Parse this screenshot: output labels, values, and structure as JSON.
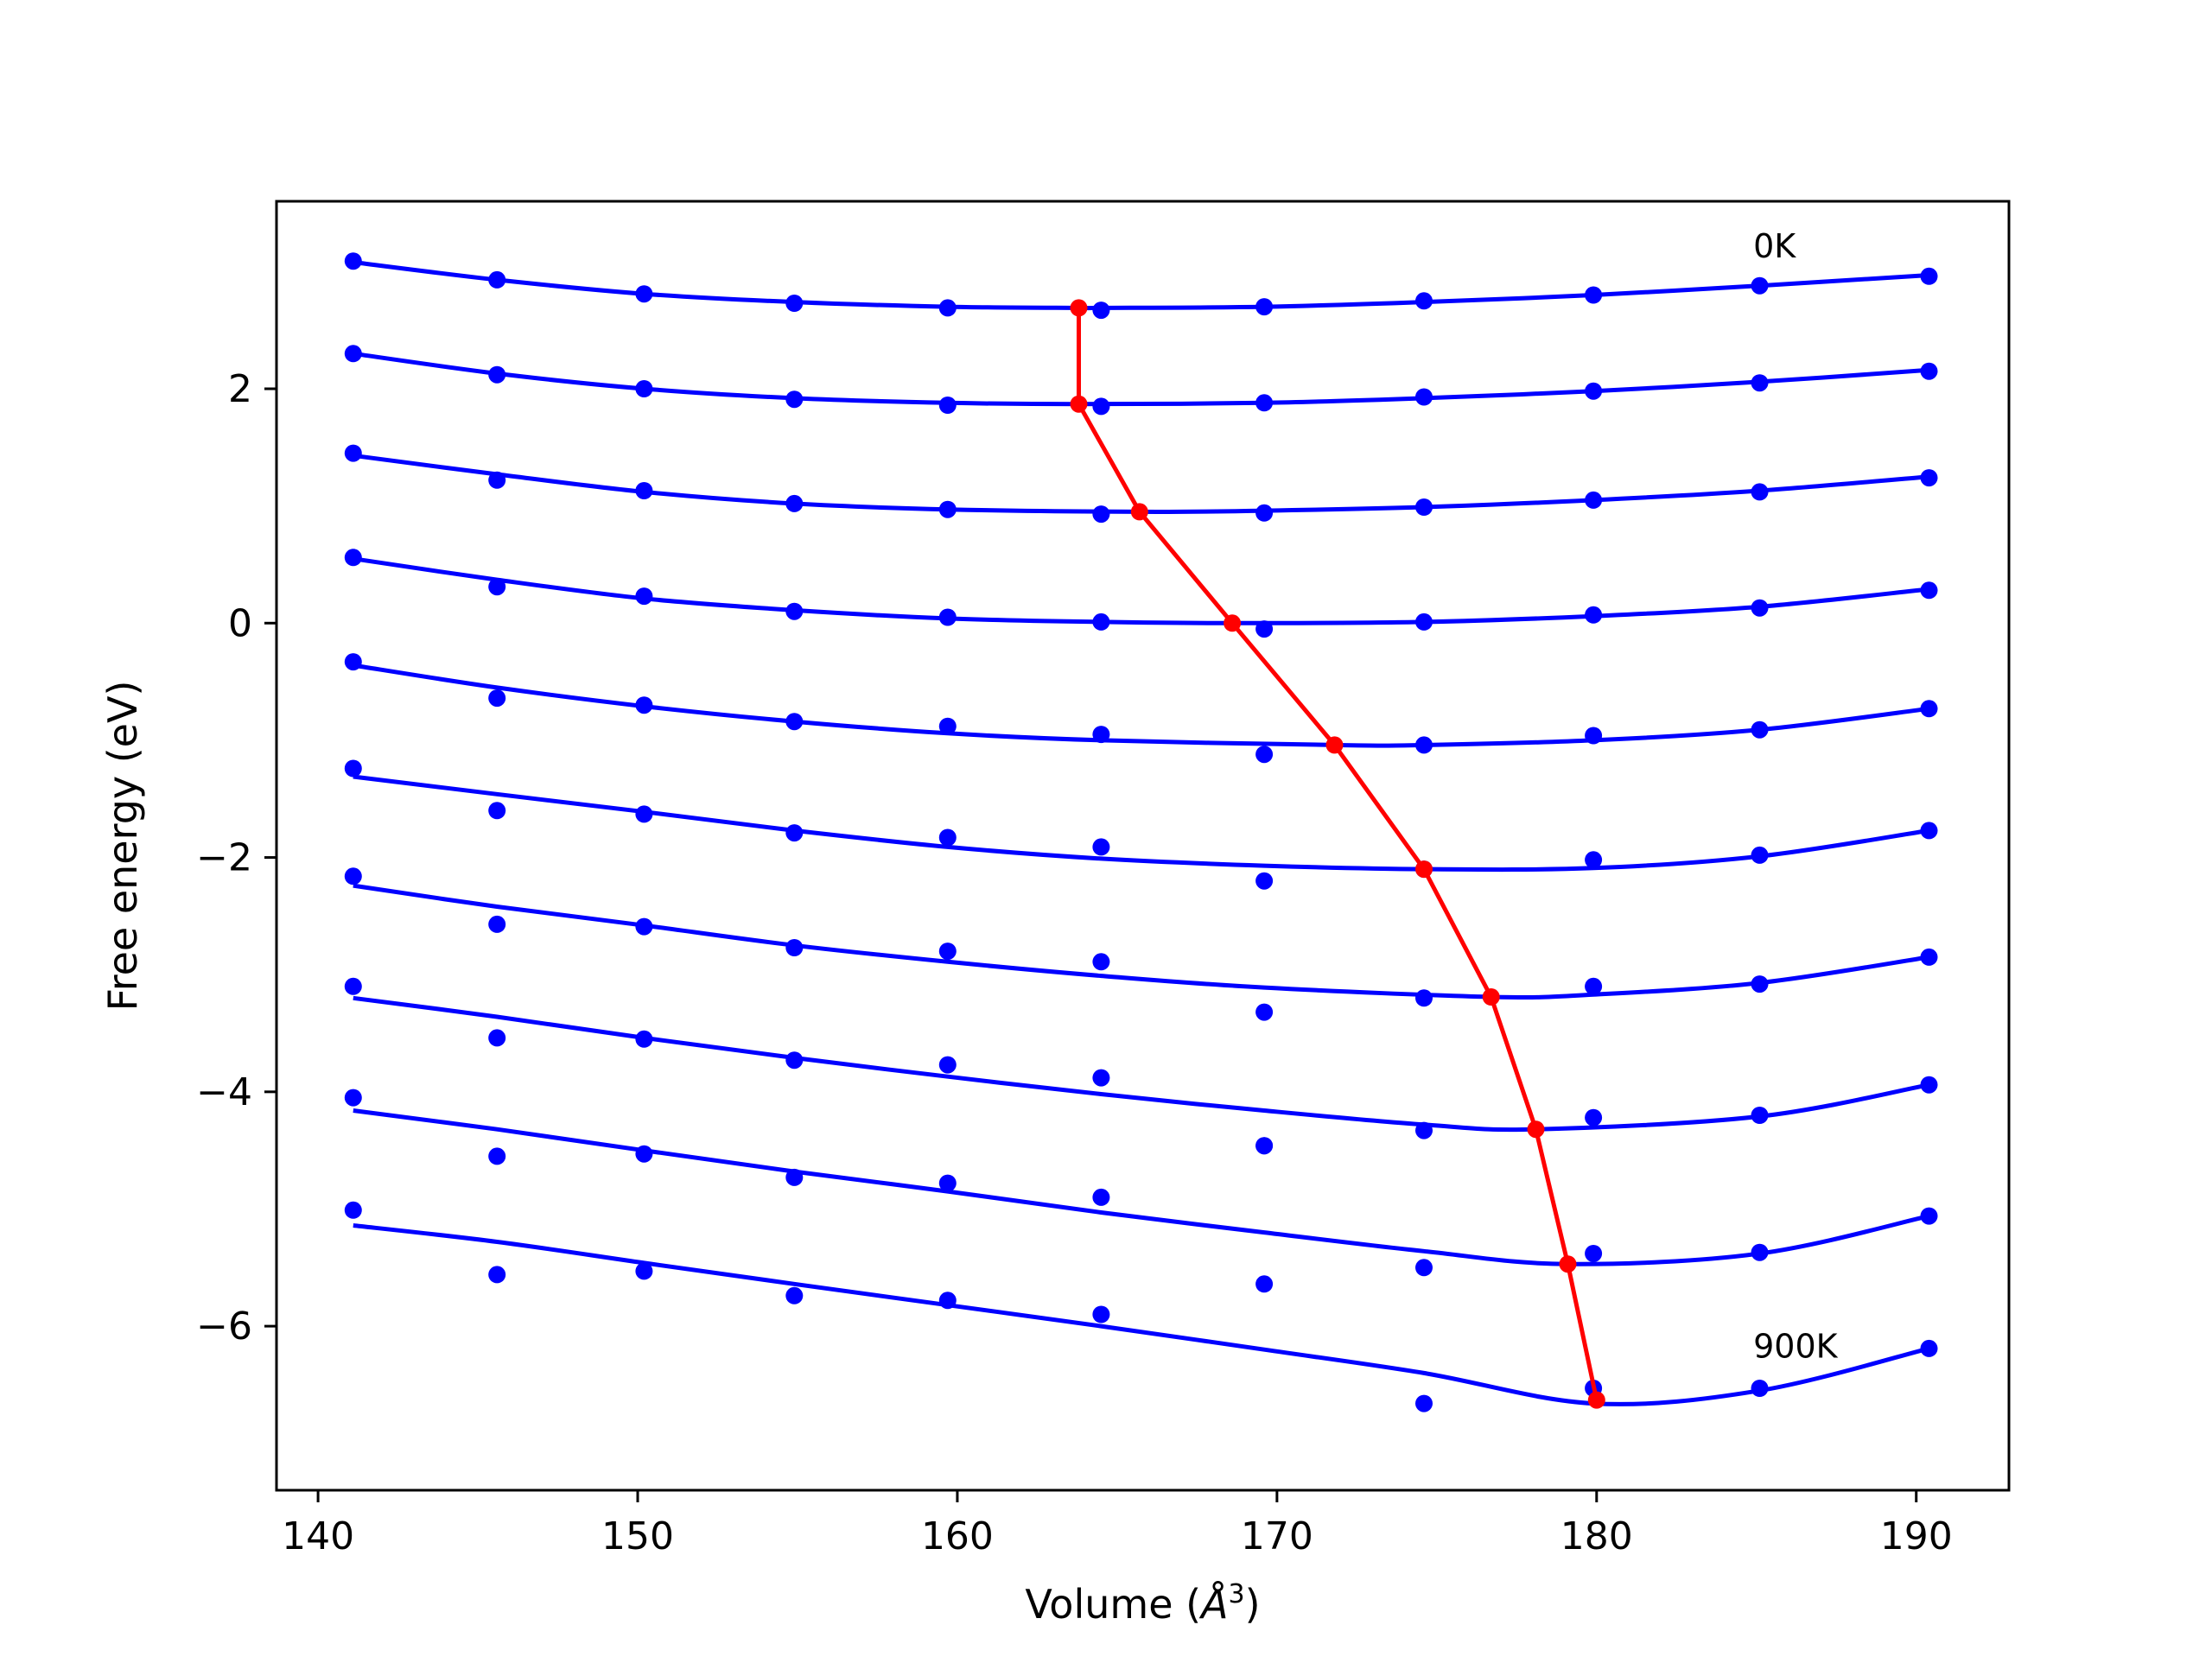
{
  "chart_data": {
    "type": "line",
    "title": "",
    "xlabel_text": "Volume (",
    "xlabel_unit": "Å",
    "xlabel_sup": "3",
    "xlabel_close": ")",
    "ylabel": "Free energy (eV)",
    "xlim": [
      138.7,
      192.9
    ],
    "ylim": [
      -7.4,
      3.6
    ],
    "xticks": [
      140,
      150,
      160,
      170,
      180,
      190
    ],
    "xtick_labels": [
      "140",
      "150",
      "160",
      "170",
      "180",
      "190"
    ],
    "yticks": [
      2,
      0,
      -2,
      -4,
      -6
    ],
    "ytick_labels": [
      "2",
      "0",
      "−2",
      "−4",
      "−6"
    ],
    "grid": false,
    "volumes": [
      141.1,
      145.6,
      150.2,
      154.9,
      159.7,
      164.5,
      169.6,
      174.6,
      179.9,
      185.1,
      190.4
    ],
    "colors": {
      "curves": "#0000ff",
      "minimum_line": "#ff0000",
      "frame": "#000000"
    },
    "annotations": [
      {
        "text": "0K",
        "x": 184.9,
        "y": 3.12
      },
      {
        "text": "900K",
        "x": 184.9,
        "y": -6.27
      }
    ],
    "series": [
      {
        "points": [
          3.09,
          2.93,
          2.81,
          2.73,
          2.69,
          2.67,
          2.7,
          2.75,
          2.8,
          2.88,
          2.96
        ],
        "curve": [
          [
            141.1,
            3.08
          ],
          [
            145.6,
            2.93
          ],
          [
            150.2,
            2.81
          ],
          [
            154.9,
            2.74
          ],
          [
            159.7,
            2.7
          ],
          [
            163.8,
            2.69
          ],
          [
            164.5,
            2.69
          ],
          [
            169.6,
            2.7
          ],
          [
            174.6,
            2.74
          ],
          [
            179.9,
            2.8
          ],
          [
            185.1,
            2.88
          ],
          [
            190.4,
            2.97
          ]
        ]
      },
      {
        "points": [
          2.3,
          2.12,
          2.0,
          1.91,
          1.86,
          1.85,
          1.88,
          1.93,
          1.98,
          2.05,
          2.15
        ],
        "curve": [
          [
            141.1,
            2.3
          ],
          [
            145.6,
            2.13
          ],
          [
            150.2,
            2.0
          ],
          [
            154.9,
            1.92
          ],
          [
            159.7,
            1.88
          ],
          [
            163.8,
            1.87
          ],
          [
            169.6,
            1.88
          ],
          [
            174.6,
            1.92
          ],
          [
            179.9,
            1.98
          ],
          [
            185.1,
            2.06
          ],
          [
            190.4,
            2.16
          ]
        ]
      },
      {
        "points": [
          1.45,
          1.22,
          1.13,
          1.02,
          0.97,
          0.93,
          0.94,
          0.99,
          1.05,
          1.12,
          1.24
        ],
        "curve": [
          [
            141.1,
            1.43
          ],
          [
            145.6,
            1.27
          ],
          [
            150.2,
            1.12
          ],
          [
            154.9,
            1.02
          ],
          [
            159.7,
            0.97
          ],
          [
            165.7,
            0.95
          ],
          [
            169.6,
            0.96
          ],
          [
            174.6,
            0.99
          ],
          [
            179.9,
            1.05
          ],
          [
            185.1,
            1.13
          ],
          [
            190.4,
            1.25
          ]
        ]
      },
      {
        "points": [
          0.56,
          0.31,
          0.23,
          0.1,
          0.05,
          0.01,
          -0.05,
          0.01,
          0.07,
          0.13,
          0.28
        ],
        "curve": [
          [
            141.1,
            0.55
          ],
          [
            145.6,
            0.37
          ],
          [
            150.2,
            0.21
          ],
          [
            154.9,
            0.11
          ],
          [
            159.7,
            0.04
          ],
          [
            164.5,
            0.01
          ],
          [
            168.6,
            0.0
          ],
          [
            174.6,
            0.01
          ],
          [
            179.9,
            0.06
          ],
          [
            185.1,
            0.14
          ],
          [
            190.4,
            0.29
          ]
        ]
      },
      {
        "points": [
          -0.33,
          -0.64,
          -0.7,
          -0.84,
          -0.88,
          -0.95,
          -1.12,
          -1.04,
          -0.96,
          -0.91,
          -0.73
        ],
        "curve": [
          [
            141.1,
            -0.36
          ],
          [
            145.6,
            -0.55
          ],
          [
            150.2,
            -0.71
          ],
          [
            154.9,
            -0.84
          ],
          [
            159.7,
            -0.94
          ],
          [
            164.5,
            -1.0
          ],
          [
            171.8,
            -1.04
          ],
          [
            174.6,
            -1.04
          ],
          [
            179.9,
            -1.0
          ],
          [
            185.1,
            -0.91
          ],
          [
            190.4,
            -0.73
          ]
        ]
      },
      {
        "points": [
          -1.24,
          -1.6,
          -1.63,
          -1.79,
          -1.83,
          -1.91,
          -2.2,
          -2.1,
          -2.02,
          -1.98,
          -1.77
        ],
        "curve": [
          [
            141.1,
            -1.31
          ],
          [
            145.6,
            -1.46
          ],
          [
            150.2,
            -1.61
          ],
          [
            154.9,
            -1.77
          ],
          [
            159.7,
            -1.91
          ],
          [
            164.5,
            -2.01
          ],
          [
            169.6,
            -2.07
          ],
          [
            174.6,
            -2.1
          ],
          [
            179.9,
            -2.09
          ],
          [
            185.1,
            -1.99
          ],
          [
            190.4,
            -1.77
          ]
        ]
      },
      {
        "points": [
          -2.16,
          -2.57,
          -2.59,
          -2.77,
          -2.8,
          -2.89,
          -3.32,
          -3.2,
          -3.1,
          -3.08,
          -2.85
        ],
        "curve": [
          [
            141.1,
            -2.24
          ],
          [
            145.6,
            -2.42
          ],
          [
            150.2,
            -2.58
          ],
          [
            154.9,
            -2.75
          ],
          [
            159.7,
            -2.89
          ],
          [
            164.5,
            -3.01
          ],
          [
            169.6,
            -3.11
          ],
          [
            176.7,
            -3.19
          ],
          [
            179.9,
            -3.17
          ],
          [
            185.1,
            -3.07
          ],
          [
            190.4,
            -2.85
          ]
        ]
      },
      {
        "points": [
          -3.1,
          -3.54,
          -3.55,
          -3.73,
          -3.77,
          -3.88,
          -4.46,
          -4.33,
          -4.22,
          -4.2,
          -3.94
        ],
        "curve": [
          [
            141.1,
            -3.2
          ],
          [
            145.6,
            -3.36
          ],
          [
            150.2,
            -3.54
          ],
          [
            154.9,
            -3.71
          ],
          [
            159.7,
            -3.87
          ],
          [
            164.5,
            -4.02
          ],
          [
            169.6,
            -4.16
          ],
          [
            174.6,
            -4.28
          ],
          [
            178.1,
            -4.32
          ],
          [
            185.1,
            -4.21
          ],
          [
            190.4,
            -3.94
          ]
        ]
      },
      {
        "points": [
          -4.05,
          -4.55,
          -4.53,
          -4.73,
          -4.78,
          -4.9,
          -4.46,
          -5.5,
          -5.38,
          -5.37,
          -5.06
        ],
        "curve": [
          [
            141.1,
            -4.16
          ],
          [
            145.6,
            -4.32
          ],
          [
            150.2,
            -4.5
          ],
          [
            154.9,
            -4.68
          ],
          [
            159.7,
            -4.85
          ],
          [
            164.5,
            -5.03
          ],
          [
            169.6,
            -5.2
          ],
          [
            174.6,
            -5.36
          ],
          [
            179.1,
            -5.47
          ],
          [
            185.1,
            -5.38
          ],
          [
            190.4,
            -5.06
          ]
        ]
      },
      {
        "points": [
          -5.01,
          -5.56,
          -5.53,
          -5.74,
          -5.78,
          -5.9,
          -5.64,
          -6.66,
          -6.53,
          -6.53,
          -6.19
        ],
        "curve": [
          [
            141.1,
            -5.14
          ],
          [
            145.6,
            -5.28
          ],
          [
            150.2,
            -5.46
          ],
          [
            154.9,
            -5.64
          ],
          [
            159.7,
            -5.82
          ],
          [
            164.5,
            -6.0
          ],
          [
            169.6,
            -6.2
          ],
          [
            174.6,
            -6.4
          ],
          [
            179.9,
            -6.66
          ],
          [
            185.1,
            -6.55
          ],
          [
            190.4,
            -6.19
          ]
        ]
      }
    ],
    "minimum_line": {
      "x": [
        163.8,
        163.8,
        165.7,
        168.6,
        171.8,
        174.6,
        176.7,
        178.1,
        179.1,
        180.0
      ],
      "y": [
        2.69,
        1.87,
        0.95,
        0.0,
        -1.04,
        -2.1,
        -3.19,
        -4.32,
        -5.47,
        -6.63
      ]
    }
  }
}
